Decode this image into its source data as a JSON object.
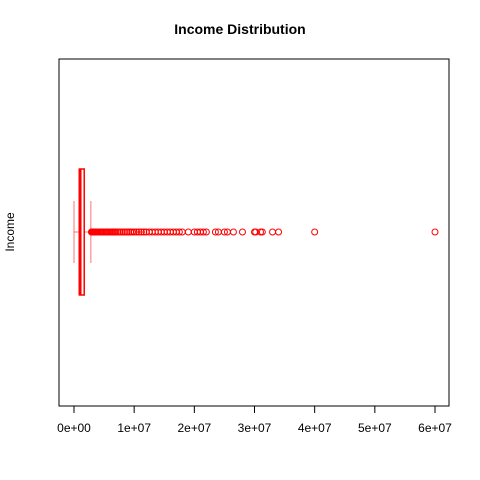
{
  "chart_data": {
    "type": "boxplot",
    "orientation": "horizontal",
    "title": "Income Distribution",
    "xlabel": "",
    "ylabel": "Income",
    "xlim": [
      -2000000,
      62500000
    ],
    "x_ticks": [
      0,
      10000000,
      20000000,
      30000000,
      40000000,
      50000000,
      60000000
    ],
    "x_tick_labels": [
      "0e+00",
      "1e+07",
      "2e+07",
      "3e+07",
      "4e+07",
      "5e+07",
      "6e+07"
    ],
    "grid": false,
    "legend": "none",
    "color": "#ff0000",
    "box": {
      "lower_whisker": 0,
      "q1": 900000,
      "median": 1000000,
      "q3": 1700000,
      "upper_whisker": 2800000
    },
    "outliers": [
      2900000,
      3000000,
      3100000,
      3200000,
      3300000,
      3400000,
      3500000,
      3600000,
      3700000,
      3800000,
      3900000,
      4000000,
      4200000,
      4400000,
      4600000,
      4800000,
      5000000,
      5200000,
      5400000,
      5600000,
      5800000,
      6000000,
      6200000,
      6400000,
      6600000,
      6800000,
      7000000,
      7300000,
      7600000,
      7900000,
      8200000,
      8500000,
      8800000,
      9100000,
      9400000,
      9700000,
      10000000,
      10400000,
      10800000,
      11200000,
      11600000,
      12000000,
      12500000,
      13000000,
      13500000,
      14000000,
      14500000,
      15000000,
      15500000,
      16000000,
      16500000,
      17000000,
      17500000,
      18000000,
      19000000,
      20000000,
      20500000,
      21000000,
      21500000,
      22000000,
      23500000,
      24000000,
      25000000,
      25500000,
      26500000,
      28000000,
      30000000,
      30200000,
      31000000,
      31300000,
      33000000,
      34000000,
      40000000,
      60000000
    ]
  }
}
